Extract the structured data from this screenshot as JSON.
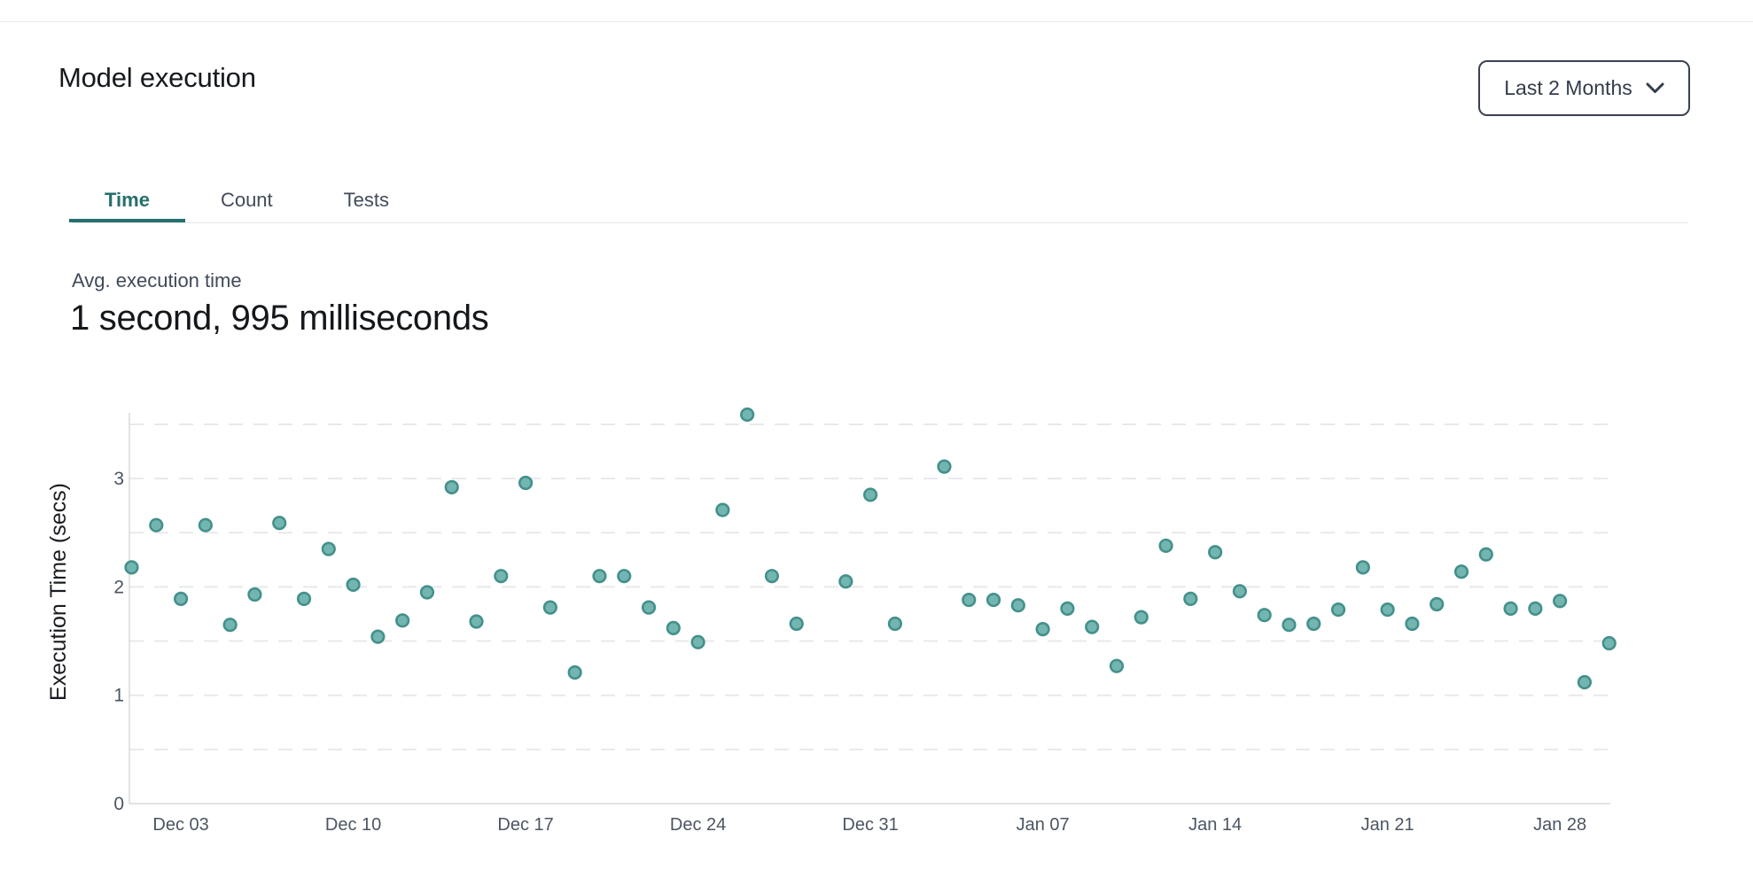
{
  "header": {
    "title": "Model execution",
    "range_selector": {
      "label": "Last 2 Months",
      "icon": "chevron-down"
    }
  },
  "tabs": [
    {
      "label": "Time",
      "active": true
    },
    {
      "label": "Count",
      "active": false
    },
    {
      "label": "Tests",
      "active": false
    }
  ],
  "summary": {
    "label": "Avg. execution time",
    "value": "1 second, 995 milliseconds"
  },
  "chart_data": {
    "type": "scatter",
    "title": "",
    "xlabel": "",
    "ylabel": "Execution Time (secs)",
    "legend": "none",
    "grid": "dashed-horizontal",
    "ylim": [
      0,
      3.7
    ],
    "y_ticks": [
      0,
      1,
      2,
      3
    ],
    "grid_values": [
      0.5,
      1,
      1.5,
      2,
      2.5,
      3,
      3.5
    ],
    "x_ticks": [
      {
        "label": "Dec 03",
        "day": 2
      },
      {
        "label": "Dec 10",
        "day": 9
      },
      {
        "label": "Dec 17",
        "day": 16
      },
      {
        "label": "Dec 24",
        "day": 23
      },
      {
        "label": "Dec 31",
        "day": 30
      },
      {
        "label": "Jan 07",
        "day": 37
      },
      {
        "label": "Jan 14",
        "day": 44
      },
      {
        "label": "Jan 21",
        "day": 51
      },
      {
        "label": "Jan 28",
        "day": 58
      }
    ],
    "points": [
      {
        "date": "Dec 01",
        "day": 0,
        "value": 2.18
      },
      {
        "date": "Dec 02",
        "day": 1,
        "value": 2.57
      },
      {
        "date": "Dec 03",
        "day": 2,
        "value": 1.89
      },
      {
        "date": "Dec 04",
        "day": 3,
        "value": 2.57
      },
      {
        "date": "Dec 05",
        "day": 4,
        "value": 1.65
      },
      {
        "date": "Dec 06",
        "day": 5,
        "value": 1.93
      },
      {
        "date": "Dec 07",
        "day": 6,
        "value": 2.59
      },
      {
        "date": "Dec 08",
        "day": 7,
        "value": 1.89
      },
      {
        "date": "Dec 09",
        "day": 8,
        "value": 2.35
      },
      {
        "date": "Dec 10",
        "day": 9,
        "value": 2.02
      },
      {
        "date": "Dec 11",
        "day": 10,
        "value": 1.54
      },
      {
        "date": "Dec 12",
        "day": 11,
        "value": 1.69
      },
      {
        "date": "Dec 13",
        "day": 12,
        "value": 1.95
      },
      {
        "date": "Dec 14",
        "day": 13,
        "value": 2.92
      },
      {
        "date": "Dec 15",
        "day": 14,
        "value": 1.68
      },
      {
        "date": "Dec 16",
        "day": 15,
        "value": 2.1
      },
      {
        "date": "Dec 17",
        "day": 16,
        "value": 2.96
      },
      {
        "date": "Dec 18",
        "day": 17,
        "value": 1.81
      },
      {
        "date": "Dec 19",
        "day": 18,
        "value": 1.21
      },
      {
        "date": "Dec 20",
        "day": 19,
        "value": 2.1
      },
      {
        "date": "Dec 21",
        "day": 20,
        "value": 2.1
      },
      {
        "date": "Dec 22",
        "day": 21,
        "value": 1.81
      },
      {
        "date": "Dec 23",
        "day": 22,
        "value": 1.62
      },
      {
        "date": "Dec 24",
        "day": 23,
        "value": 1.49
      },
      {
        "date": "Dec 25",
        "day": 24,
        "value": 2.71
      },
      {
        "date": "Dec 26",
        "day": 25,
        "value": 3.59
      },
      {
        "date": "Dec 27",
        "day": 26,
        "value": 2.1
      },
      {
        "date": "Dec 28",
        "day": 27,
        "value": 1.66
      },
      {
        "date": "Dec 30",
        "day": 29,
        "value": 2.05
      },
      {
        "date": "Dec 31",
        "day": 30,
        "value": 2.85
      },
      {
        "date": "Jan 01",
        "day": 31,
        "value": 1.66
      },
      {
        "date": "Jan 03",
        "day": 33,
        "value": 3.11
      },
      {
        "date": "Jan 04",
        "day": 34,
        "value": 1.88
      },
      {
        "date": "Jan 05",
        "day": 35,
        "value": 1.88
      },
      {
        "date": "Jan 06",
        "day": 36,
        "value": 1.83
      },
      {
        "date": "Jan 07",
        "day": 37,
        "value": 1.61
      },
      {
        "date": "Jan 08",
        "day": 38,
        "value": 1.8
      },
      {
        "date": "Jan 09",
        "day": 39,
        "value": 1.63
      },
      {
        "date": "Jan 10",
        "day": 40,
        "value": 1.27
      },
      {
        "date": "Jan 11",
        "day": 41,
        "value": 1.72
      },
      {
        "date": "Jan 12",
        "day": 42,
        "value": 2.38
      },
      {
        "date": "Jan 13",
        "day": 43,
        "value": 1.89
      },
      {
        "date": "Jan 14",
        "day": 44,
        "value": 2.32
      },
      {
        "date": "Jan 15",
        "day": 45,
        "value": 1.96
      },
      {
        "date": "Jan 16",
        "day": 46,
        "value": 1.74
      },
      {
        "date": "Jan 17",
        "day": 47,
        "value": 1.65
      },
      {
        "date": "Jan 18",
        "day": 48,
        "value": 1.66
      },
      {
        "date": "Jan 19",
        "day": 49,
        "value": 1.79
      },
      {
        "date": "Jan 20",
        "day": 50,
        "value": 2.18
      },
      {
        "date": "Jan 21",
        "day": 51,
        "value": 1.79
      },
      {
        "date": "Jan 22",
        "day": 52,
        "value": 1.66
      },
      {
        "date": "Jan 23",
        "day": 53,
        "value": 1.84
      },
      {
        "date": "Jan 24",
        "day": 54,
        "value": 2.14
      },
      {
        "date": "Jan 25",
        "day": 55,
        "value": 2.3
      },
      {
        "date": "Jan 26",
        "day": 56,
        "value": 1.8
      },
      {
        "date": "Jan 27",
        "day": 57,
        "value": 1.8
      },
      {
        "date": "Jan 28",
        "day": 58,
        "value": 1.87
      },
      {
        "date": "Jan 29",
        "day": 59,
        "value": 1.12
      },
      {
        "date": "Jan 30",
        "day": 60,
        "value": 1.48
      }
    ],
    "colors": {
      "point_fill": "#73b6b1",
      "point_stroke": "#44908b",
      "grid_line": "#e8e9eb",
      "axis_line": "#d7d9dc",
      "tick_label": "#4b5563",
      "axis_title": "#191c20",
      "accent_teal": "#256f6c"
    }
  }
}
